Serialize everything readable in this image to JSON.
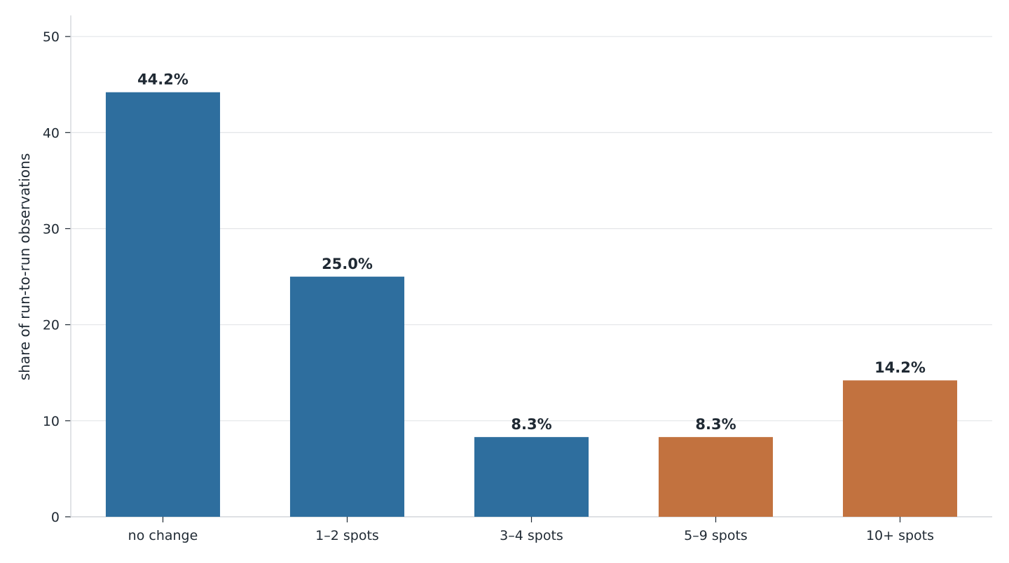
{
  "chart_data": {
    "type": "bar",
    "title": "",
    "xlabel": "",
    "ylabel": "share of run-to-run observations",
    "categories": [
      "no change",
      "1–2 spots",
      "3–4 spots",
      "5–9 spots",
      "10+ spots"
    ],
    "values": [
      44.2,
      25.0,
      8.3,
      8.3,
      14.2
    ],
    "value_labels": [
      "44.2%",
      "25.0%",
      "8.3%",
      "8.3%",
      "14.2%"
    ],
    "ylim": [
      0,
      52.2
    ],
    "yticks": [
      0,
      10,
      20,
      30,
      40,
      50
    ],
    "ytick_labels": [
      "0",
      "10",
      "20",
      "30",
      "40",
      "50"
    ],
    "grid": "horizontal",
    "legend": "none",
    "bar_colors": [
      "#2e6e9e",
      "#2e6e9e",
      "#2e6e9e",
      "#c2723f",
      "#c2723f"
    ],
    "colors": {
      "text": "#1f2933",
      "grid": "#e3e5e8",
      "axis": "#d4d7db"
    }
  }
}
